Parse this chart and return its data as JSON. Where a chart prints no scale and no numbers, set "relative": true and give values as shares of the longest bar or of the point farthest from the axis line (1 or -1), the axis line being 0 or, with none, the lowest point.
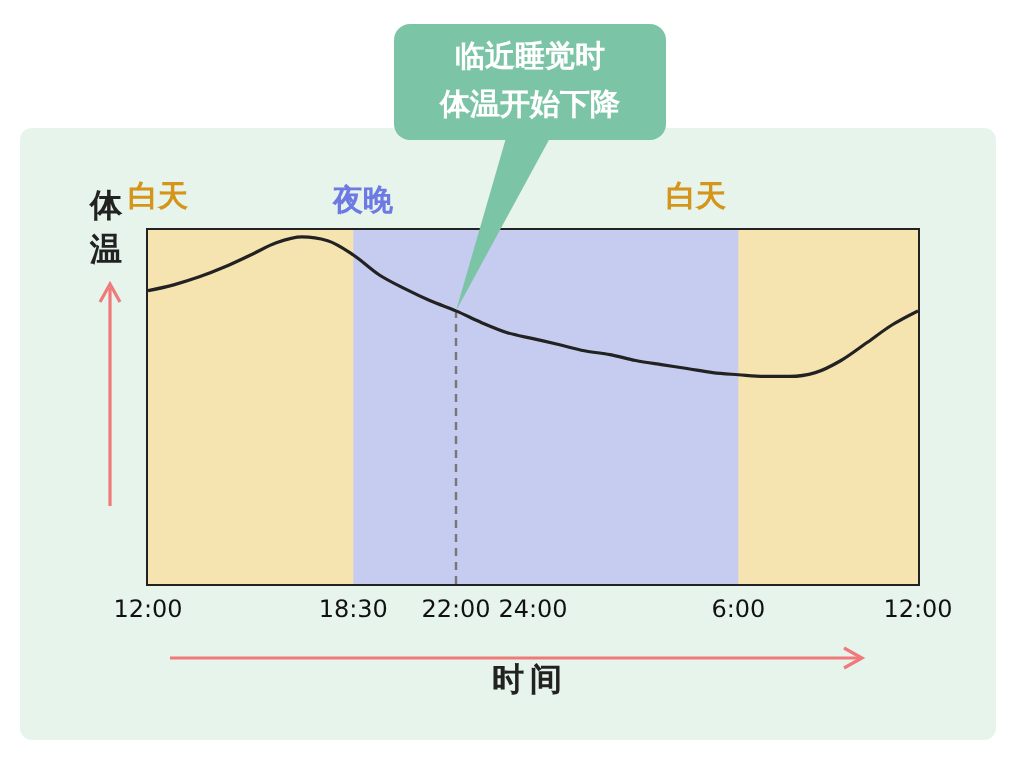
{
  "chart_data": {
    "type": "line",
    "relative": true,
    "xlabel": "时间",
    "ylabel": "体温",
    "categories": [
      "12:00",
      null,
      null,
      null,
      null,
      null,
      null,
      null,
      "18:30",
      null,
      null,
      null,
      "22:00",
      null,
      null,
      "24:00",
      null,
      null,
      null,
      null,
      null,
      null,
      null,
      "6:00",
      null,
      null,
      null,
      null,
      null,
      null,
      "12:00"
    ],
    "series": [
      {
        "color": "#222222",
        "values": [
          0.845,
          0.862,
          0.885,
          0.914,
          0.948,
          0.983,
          1,
          0.989,
          0.948,
          0.891,
          0.851,
          0.816,
          0.787,
          0.753,
          0.724,
          0.707,
          0.69,
          0.672,
          0.661,
          0.644,
          0.632,
          0.621,
          0.609,
          0.603,
          0.598,
          0.598,
          0.609,
          0.644,
          0.695,
          0.747,
          0.787
        ]
      }
    ],
    "bands": [
      {
        "axis": "x",
        "from": "18:30",
        "to": "6:00",
        "label": "夜晚",
        "color": "#c6cbf0"
      }
    ],
    "ref_lines": [
      {
        "axis": "x",
        "value": "22:00",
        "color": "#777777",
        "line_style": "dashed"
      }
    ],
    "annotations": [
      "白天",
      "临近睡觉时",
      "体温开始下降",
      "白天"
    ]
  }
}
